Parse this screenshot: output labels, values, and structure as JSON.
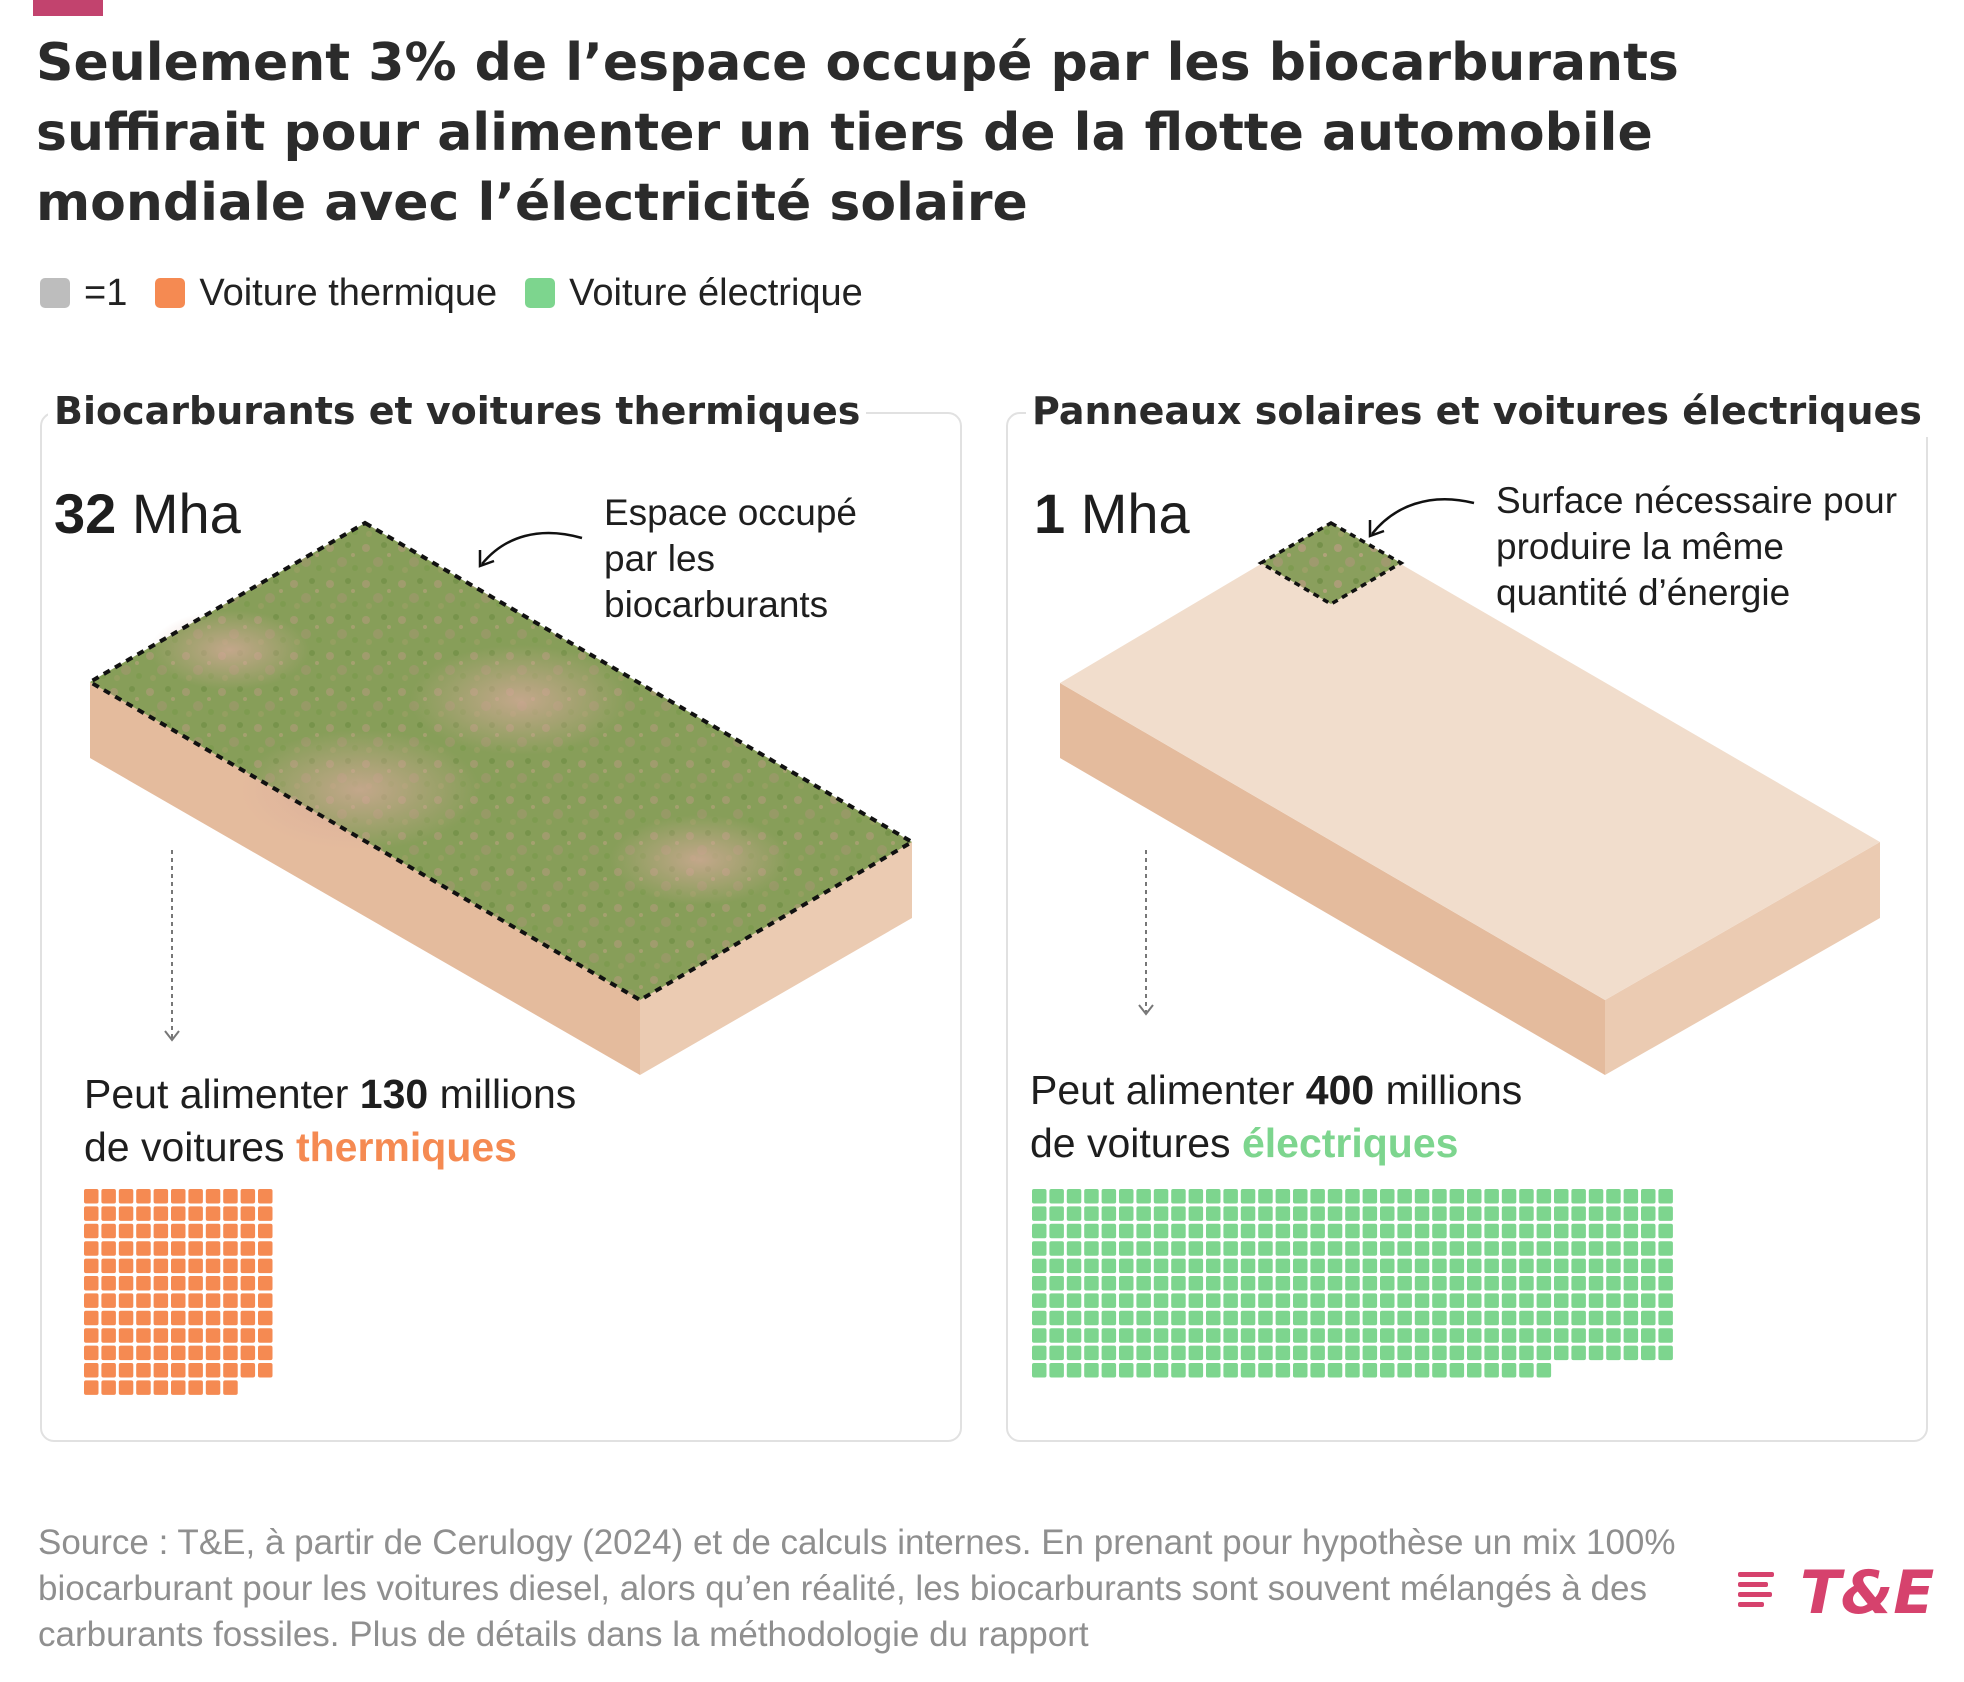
{
  "title": "Seulement 3% de l’espace occupé par les biocarburants suffirait pour alimenter un tiers de la flotte automobile mondiale avec l’électricité solaire",
  "legend": [
    {
      "label": "=1",
      "color": "#bdbdbd"
    },
    {
      "label": "Voiture thermique",
      "color": "#f58a52"
    },
    {
      "label": "Voiture électrique",
      "color": "#7dd58e"
    }
  ],
  "colors": {
    "thermique": "#f58a52",
    "electrique": "#7dd58e",
    "slab_top": "#f1ddcc",
    "slab_left": "#e4bb9d",
    "slab_front": "#ebcbb2",
    "brand": "#d6426d"
  },
  "panels": {
    "biocarburants": {
      "title": "Biocarburants et voitures thermiques",
      "area_value": "32",
      "area_unit": "Mha",
      "annotation": "Espace occupé par les biocarburants",
      "caption_prefix": "Peut alimenter",
      "caption_value": "130",
      "caption_suffix": "millions",
      "caption_line2": "de voitures",
      "caption_highlight": "thermiques",
      "count": 130
    },
    "solaire": {
      "title": "Panneaux solaires et voitures électriques",
      "area_value": "1",
      "area_unit": "Mha",
      "annotation": "Surface nécessaire pour produire la même quantité d’énergie",
      "caption_prefix": "Peut alimenter",
      "caption_value": "400",
      "caption_suffix": "millions",
      "caption_line2": "de voitures",
      "caption_highlight": "électriques",
      "count": 400
    }
  },
  "chart_data": {
    "type": "waffle",
    "unit": "millions de voitures",
    "series": [
      {
        "name": "Voiture thermique",
        "land_area_mha": 32,
        "cars_millions": 130
      },
      {
        "name": "Voiture électrique",
        "land_area_mha": 1,
        "cars_millions": 400
      }
    ]
  },
  "source": "Source : T&E, à partir de Cerulogy (2024) et de calculs internes. En prenant pour hypothèse un mix 100% biocarburant pour les voitures diesel, alors qu’en réalité, les biocarburants sont souvent mélangés à des carburants fossiles. Plus de détails dans la méthodologie du rapport",
  "logo": "T&E"
}
